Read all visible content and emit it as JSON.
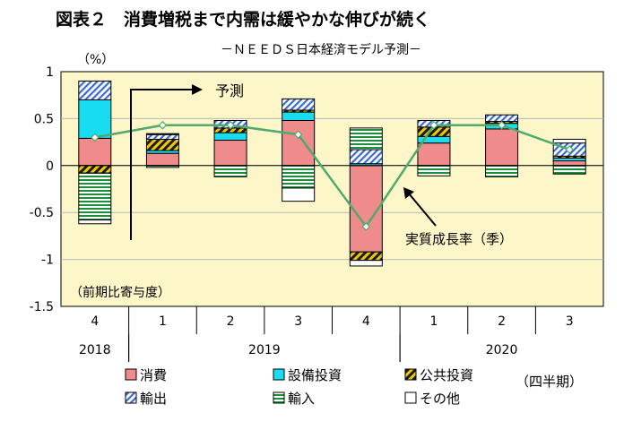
{
  "title": "図表２　消費増税まで内需は緩やかな伸びが続く",
  "subtitle": "－ＮＥＥＤＳ日本経済モデル予測－",
  "unit_label": "（%）",
  "inner_note": "（前期比寄与度）",
  "forecast_label": "予測",
  "growth_label": "実質成長率（季）",
  "freq_note": "（四半期）",
  "colors": {
    "plot_bg": "#fdf6c8",
    "consumption": "#f08b8b",
    "capex": "#18dcf0",
    "public": "#f0c800",
    "exports": "#3a6ad8",
    "imports": "#1d8f3c",
    "other": "#ffffff",
    "growth_line": "#4faa6c"
  },
  "chart_data": {
    "type": "bar",
    "stacked": true,
    "title": "図表２　消費増税まで内需は緩やかな伸びが続く",
    "subtitle": "－ＮＥＥＤＳ日本経済モデル予測－",
    "ylabel": "（%）",
    "ylim": [
      -1.5,
      1
    ],
    "yticks": [
      "1",
      "0.5",
      "0",
      "-0.5",
      "-1",
      "-1.5"
    ],
    "ytick_values": [
      1,
      0.5,
      0,
      -0.5,
      -1,
      -1.5
    ],
    "grid": true,
    "categories": [
      "4",
      "1",
      "2",
      "3",
      "4",
      "1",
      "2",
      "3"
    ],
    "year_labels": [
      {
        "label": "2018",
        "start": 0,
        "end": 0
      },
      {
        "label": "2019",
        "start": 1,
        "end": 4
      },
      {
        "label": "2020",
        "start": 5,
        "end": 7
      }
    ],
    "series": [
      {
        "name": "消費",
        "key": "consumption",
        "values": [
          0.29,
          0.13,
          0.27,
          0.48,
          -0.92,
          0.24,
          0.39,
          0.05
        ]
      },
      {
        "name": "設備投資",
        "key": "capex",
        "values": [
          0.41,
          0.03,
          0.08,
          0.09,
          0.02,
          0.07,
          0.06,
          0.03
        ]
      },
      {
        "name": "公共投資",
        "key": "public",
        "values": [
          -0.08,
          0.12,
          0.05,
          0.02,
          -0.09,
          0.1,
          0.02,
          0.02
        ]
      },
      {
        "name": "輸出",
        "key": "exports",
        "values": [
          0.2,
          0.05,
          0.08,
          0.12,
          0.15,
          0.07,
          0.07,
          0.14
        ]
      },
      {
        "name": "輸入",
        "key": "imports",
        "values": [
          -0.5,
          -0.02,
          -0.12,
          -0.24,
          0.23,
          -0.11,
          -0.12,
          -0.09
        ]
      },
      {
        "name": "その他",
        "key": "other",
        "values": [
          -0.04,
          0.01,
          0.0,
          -0.14,
          -0.06,
          0.0,
          0.0,
          0.04
        ]
      }
    ],
    "line": {
      "name": "実質成長率（季）",
      "values": [
        0.3,
        0.43,
        0.43,
        0.33,
        -0.65,
        0.43,
        0.43,
        0.17
      ]
    },
    "legend": [
      {
        "label": "消費",
        "key": "consumption"
      },
      {
        "label": "設備投資",
        "key": "capex"
      },
      {
        "label": "公共投資",
        "key": "public"
      },
      {
        "label": "輸出",
        "key": "exports"
      },
      {
        "label": "輸入",
        "key": "imports"
      },
      {
        "label": "その他",
        "key": "other"
      }
    ],
    "legend_position": "bottom"
  }
}
